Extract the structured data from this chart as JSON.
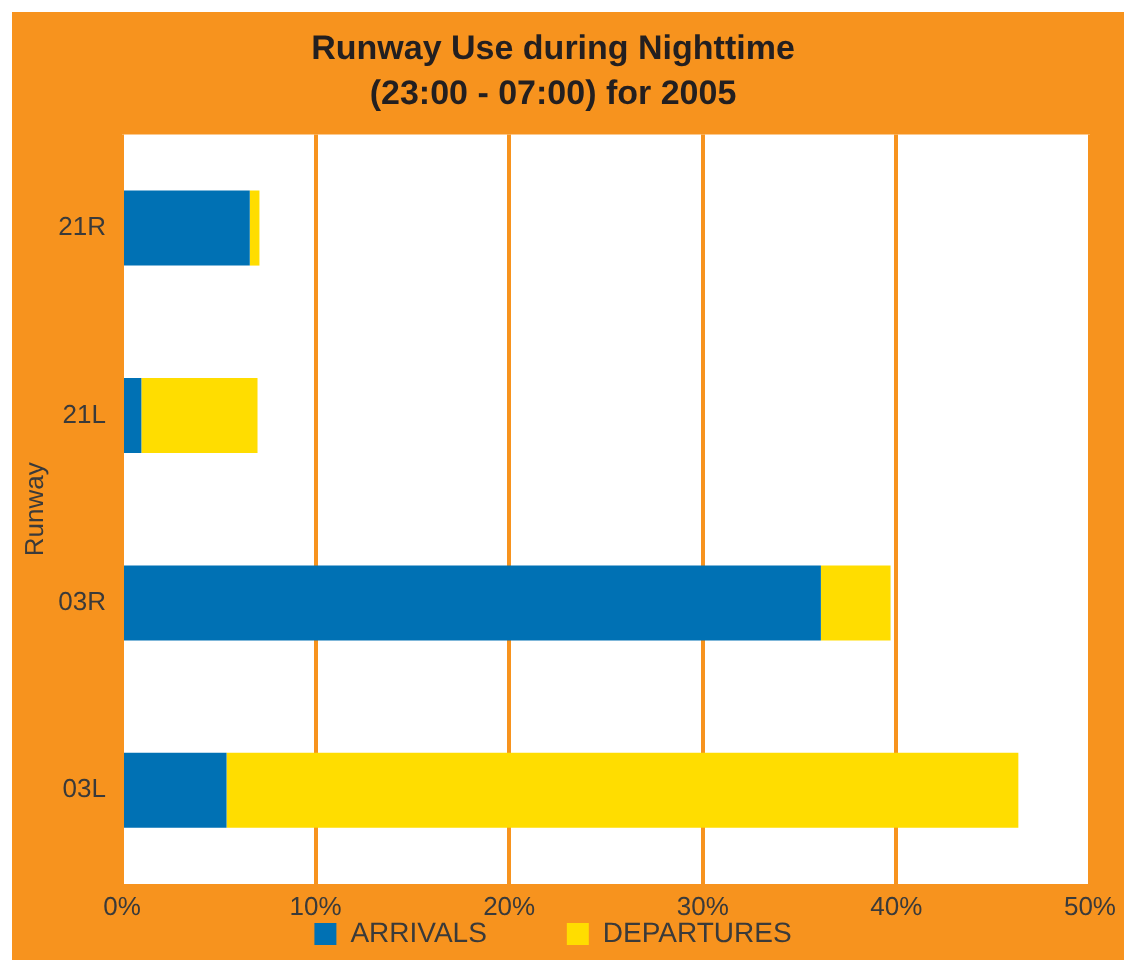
{
  "chart_data": {
    "type": "bar",
    "orientation": "horizontal",
    "stacked": true,
    "title": "Runway Use during Nighttime\n(23:00 - 07:00) for 2005",
    "ylabel": "Runway",
    "categories": [
      "21R",
      "21L",
      "03R",
      "03L"
    ],
    "series": [
      {
        "name": "ARRIVALS",
        "color": "#0071b4",
        "values": [
          6.6,
          1.0,
          36.1,
          5.4
        ]
      },
      {
        "name": "DEPARTURES",
        "color": "#ffdd00",
        "values": [
          0.5,
          6.0,
          3.6,
          40.9
        ]
      }
    ],
    "xlim": [
      0,
      50
    ],
    "xticks": [
      {
        "value": 0,
        "label": "0%"
      },
      {
        "value": 10,
        "label": "10%"
      },
      {
        "value": 20,
        "label": "20%"
      },
      {
        "value": 30,
        "label": "30%"
      },
      {
        "value": 40,
        "label": "40%"
      },
      {
        "value": 50,
        "label": "50%"
      }
    ],
    "grid": "x",
    "legend": "bottom"
  }
}
